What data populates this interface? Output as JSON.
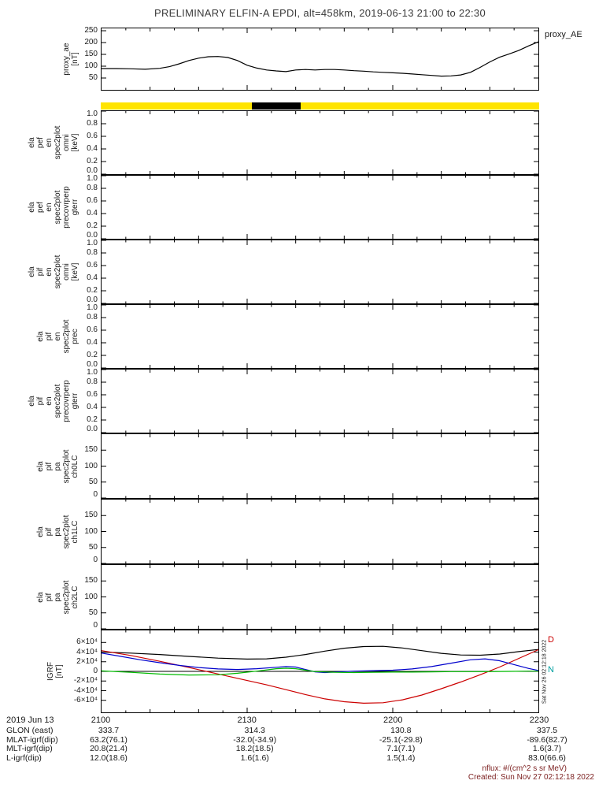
{
  "title": "PRELIMINARY ELFIN-A EPDI, alt=458km, 2019-06-13 21:00 to 22:30",
  "proxy_ae_right_label": "proxy_AE",
  "side_timestamp": "Sat Nov 26 02:12:18 2022",
  "igrf_legend": [
    {
      "label": "D",
      "color": "#cc0000"
    },
    {
      "label": "N",
      "color": "#00a0a0"
    }
  ],
  "footer": {
    "nflux": "nflux: #/(cm^2 s sr MeV)",
    "created": "Created: Sun Nov 27 02:12:18 2022"
  },
  "colors": {
    "strip_yellow": "#ffe400",
    "strip_black": "#000000",
    "igrf_black": "#000000",
    "igrf_red": "#cc0000",
    "igrf_blue": "#0000cc",
    "igrf_green": "#00bb00"
  },
  "xaxis": {
    "date_label": "2019 Jun 13",
    "tick_minutes": [
      0,
      30,
      60,
      90
    ],
    "tick_labels": [
      "2100",
      "2130",
      "2200",
      "2230"
    ],
    "rows": [
      {
        "label": "GLON (east)",
        "values": [
          "333.7",
          "314.3",
          "130.8",
          "337.5"
        ]
      },
      {
        "label": "MLAT-igrf(dip)",
        "values": [
          "63.2(76.1)",
          "-32.0(-34.9)",
          "-25.1(-29.8)",
          "-89.6(82.7)"
        ]
      },
      {
        "label": "MLT-igrf(dip)",
        "values": [
          "20.8(21.4)",
          "18.2(18.5)",
          "7.1(7.1)",
          "1.6(3.7)"
        ]
      },
      {
        "label": "L-igrf(dip)",
        "values": [
          "12.0(18.6)",
          "1.6(1.6)",
          "1.5(1.4)",
          "83.0(66.6)"
        ]
      }
    ]
  },
  "chart_data": [
    {
      "id": "proxy_ae",
      "type": "line",
      "ylabel_lines": [
        "proxy_ae",
        "[nT]"
      ],
      "ylim": [
        0,
        260
      ],
      "yticks": [
        50,
        100,
        150,
        200,
        250
      ],
      "ytick_labels": [
        "50",
        "100",
        "150",
        "200",
        "250"
      ],
      "series": [
        {
          "name": "proxy_AE",
          "color": "#000000",
          "points": [
            [
              0,
              90
            ],
            [
              3,
              90
            ],
            [
              6,
              89
            ],
            [
              9,
              87
            ],
            [
              12,
              91
            ],
            [
              14,
              98
            ],
            [
              16,
              110
            ],
            [
              18,
              124
            ],
            [
              20,
              134
            ],
            [
              22,
              140
            ],
            [
              24,
              141
            ],
            [
              26,
              137
            ],
            [
              28,
              124
            ],
            [
              30,
              104
            ],
            [
              32,
              92
            ],
            [
              34,
              84
            ],
            [
              36,
              80
            ],
            [
              38,
              77
            ],
            [
              40,
              84
            ],
            [
              42,
              86
            ],
            [
              44,
              84
            ],
            [
              46,
              86
            ],
            [
              48,
              86
            ],
            [
              50,
              84
            ],
            [
              52,
              81
            ],
            [
              54,
              79
            ],
            [
              56,
              76
            ],
            [
              58,
              74
            ],
            [
              60,
              72
            ],
            [
              62,
              70
            ],
            [
              64,
              67
            ],
            [
              66,
              64
            ],
            [
              68,
              61
            ],
            [
              70,
              58
            ],
            [
              72,
              59
            ],
            [
              74,
              63
            ],
            [
              76,
              74
            ],
            [
              78,
              95
            ],
            [
              80,
              118
            ],
            [
              82,
              138
            ],
            [
              84,
              152
            ],
            [
              86,
              167
            ],
            [
              88,
              186
            ],
            [
              90,
              203
            ]
          ]
        }
      ]
    },
    {
      "id": "availability_strip",
      "type": "strip",
      "segments": [
        {
          "from": 0,
          "to": 31,
          "color": "#ffe400"
        },
        {
          "from": 31,
          "to": 41,
          "color": "#000000"
        },
        {
          "from": 41,
          "to": 90,
          "color": "#ffe400"
        }
      ]
    },
    {
      "id": "ela_pef_en_spec2plot_omni",
      "type": "line",
      "ylabel_lines": [
        "ela",
        "pef",
        "en",
        "spec2plot",
        "omni",
        "[keV]"
      ],
      "ylim": [
        0,
        1
      ],
      "yticks": [
        0,
        0.2,
        0.4,
        0.6,
        0.8,
        1
      ],
      "ytick_labels": [
        "0.0",
        "0.2",
        "0.4",
        "0.6",
        "0.8",
        "1.0"
      ],
      "series": []
    },
    {
      "id": "ela_pef_en_spec2plot_precovrperp_gterr",
      "type": "line",
      "ylabel_lines": [
        "ela",
        "pef",
        "en",
        "spec2plot",
        "precovrperp",
        "gterr"
      ],
      "ylim": [
        0,
        1
      ],
      "yticks": [
        0,
        0.2,
        0.4,
        0.6,
        0.8,
        1
      ],
      "ytick_labels": [
        "0.0",
        "0.2",
        "0.4",
        "0.6",
        "0.8",
        "1.0"
      ],
      "series": []
    },
    {
      "id": "ela_pif_en_spec2plot_omni",
      "type": "line",
      "ylabel_lines": [
        "ela",
        "pif",
        "en",
        "spec2plot",
        "omni",
        "[keV]"
      ],
      "ylim": [
        0,
        1
      ],
      "yticks": [
        0,
        0.2,
        0.4,
        0.6,
        0.8,
        1
      ],
      "ytick_labels": [
        "0.0",
        "0.2",
        "0.4",
        "0.6",
        "0.8",
        "1.0"
      ],
      "series": []
    },
    {
      "id": "ela_pif_en_spec2plot_prec",
      "type": "line",
      "ylabel_lines": [
        "ela",
        "pif",
        "en",
        "spec2plot",
        "prec"
      ],
      "ylim": [
        0,
        1
      ],
      "yticks": [
        0,
        0.2,
        0.4,
        0.6,
        0.8,
        1
      ],
      "ytick_labels": [
        "0.0",
        "0.2",
        "0.4",
        "0.6",
        "0.8",
        "1.0"
      ],
      "series": []
    },
    {
      "id": "ela_pif_en_spec2plot_precovrperp_gterr",
      "type": "line",
      "ylabel_lines": [
        "ela",
        "pif",
        "en",
        "spec2plot",
        "precovrperp",
        "gterr"
      ],
      "ylim": [
        0,
        1
      ],
      "yticks": [
        0,
        0.2,
        0.4,
        0.6,
        0.8,
        1
      ],
      "ytick_labels": [
        "0.0",
        "0.2",
        "0.4",
        "0.6",
        "0.8",
        "1.0"
      ],
      "series": []
    },
    {
      "id": "ela_pif_pa_spec2plot_ch0LC",
      "type": "line",
      "ylabel_lines": [
        "ela",
        "pif",
        "pa",
        "spec2plot",
        "ch0LC"
      ],
      "ylim": [
        0,
        200
      ],
      "yticks": [
        0,
        50,
        100,
        150
      ],
      "ytick_labels": [
        "0",
        "50",
        "100",
        "150"
      ],
      "series": []
    },
    {
      "id": "ela_pif_pa_spec2plot_ch1LC",
      "type": "line",
      "ylabel_lines": [
        "ela",
        "pif",
        "pa",
        "spec2plot",
        "ch1LC"
      ],
      "ylim": [
        0,
        200
      ],
      "yticks": [
        0,
        50,
        100,
        150
      ],
      "ytick_labels": [
        "0",
        "50",
        "100",
        "150"
      ],
      "series": []
    },
    {
      "id": "ela_pif_pa_spec2plot_ch2LC",
      "type": "line",
      "ylabel_lines": [
        "ela",
        "pif",
        "pa",
        "spec2plot",
        "ch2LC"
      ],
      "ylim": [
        0,
        200
      ],
      "yticks": [
        0,
        50,
        100,
        150
      ],
      "ytick_labels": [
        "0",
        "50",
        "100",
        "150"
      ],
      "series": []
    },
    {
      "id": "igrf",
      "type": "line",
      "zero_line": true,
      "ylabel_lines": [
        "IGRF",
        "[nT]"
      ],
      "ylim": [
        -85000,
        85000
      ],
      "yticks": [
        -60000,
        -40000,
        -20000,
        0,
        20000,
        40000,
        60000
      ],
      "ytick_labels": [
        "-6×10⁴",
        "-4×10⁴",
        "-2×10⁴",
        "0",
        "2×10⁴",
        "4×10⁴",
        "6×10⁴"
      ],
      "series": [
        {
          "name": "igrf_total_black",
          "color": "#000000",
          "points": [
            [
              0,
              40000
            ],
            [
              6,
              38000
            ],
            [
              12,
              35000
            ],
            [
              18,
              31000
            ],
            [
              24,
              27500
            ],
            [
              30,
              25500
            ],
            [
              34,
              26000
            ],
            [
              38,
              29500
            ],
            [
              42,
              35000
            ],
            [
              46,
              42000
            ],
            [
              50,
              48000
            ],
            [
              54,
              51500
            ],
            [
              58,
              52000
            ],
            [
              62,
              48500
            ],
            [
              66,
              43000
            ],
            [
              70,
              37500
            ],
            [
              74,
              34000
            ],
            [
              78,
              33500
            ],
            [
              82,
              36000
            ],
            [
              86,
              41000
            ],
            [
              90,
              45500
            ]
          ]
        },
        {
          "name": "igrf_d_red",
          "color": "#cc0000",
          "points": [
            [
              0,
              43000
            ],
            [
              6,
              33000
            ],
            [
              12,
              21000
            ],
            [
              18,
              8000
            ],
            [
              22,
              -1000
            ],
            [
              26,
              -10000
            ],
            [
              30,
              -19000
            ],
            [
              34,
              -28000
            ],
            [
              38,
              -38000
            ],
            [
              42,
              -48000
            ],
            [
              46,
              -57000
            ],
            [
              50,
              -63000
            ],
            [
              54,
              -66000
            ],
            [
              58,
              -65000
            ],
            [
              62,
              -59000
            ],
            [
              66,
              -49000
            ],
            [
              70,
              -36000
            ],
            [
              74,
              -22000
            ],
            [
              78,
              -7000
            ],
            [
              82,
              9000
            ],
            [
              86,
              27000
            ],
            [
              90,
              45000
            ]
          ]
        },
        {
          "name": "igrf_blue",
          "color": "#0000cc",
          "points": [
            [
              0,
              38000
            ],
            [
              4,
              31000
            ],
            [
              8,
              24000
            ],
            [
              12,
              18000
            ],
            [
              16,
              12500
            ],
            [
              20,
              8000
            ],
            [
              24,
              5000
            ],
            [
              28,
              4000
            ],
            [
              32,
              5500
            ],
            [
              36,
              8500
            ],
            [
              38,
              10000
            ],
            [
              40,
              9000
            ],
            [
              42,
              4000
            ],
            [
              44,
              -1000
            ],
            [
              46,
              -2500
            ],
            [
              48,
              -1500
            ],
            [
              52,
              500
            ],
            [
              56,
              1500
            ],
            [
              60,
              2500
            ],
            [
              64,
              5000
            ],
            [
              68,
              10000
            ],
            [
              72,
              17000
            ],
            [
              76,
              24000
            ],
            [
              79,
              26000
            ],
            [
              82,
              22000
            ],
            [
              85,
              14000
            ],
            [
              88,
              6000
            ],
            [
              90,
              2000
            ]
          ]
        },
        {
          "name": "igrf_n_green",
          "color": "#00bb00",
          "points": [
            [
              0,
              1000
            ],
            [
              6,
              -2000
            ],
            [
              12,
              -5500
            ],
            [
              18,
              -7500
            ],
            [
              24,
              -7000
            ],
            [
              28,
              -4000
            ],
            [
              32,
              500
            ],
            [
              36,
              5500
            ],
            [
              38,
              6500
            ],
            [
              40,
              5500
            ],
            [
              42,
              2500
            ],
            [
              44,
              -500
            ],
            [
              48,
              -2000
            ],
            [
              52,
              -2500
            ],
            [
              56,
              -2000
            ],
            [
              60,
              -1500
            ],
            [
              64,
              -1500
            ],
            [
              68,
              -1000
            ],
            [
              72,
              -500
            ],
            [
              76,
              -500
            ],
            [
              80,
              -500
            ],
            [
              84,
              0
            ],
            [
              88,
              500
            ],
            [
              90,
              500
            ]
          ]
        }
      ]
    }
  ]
}
